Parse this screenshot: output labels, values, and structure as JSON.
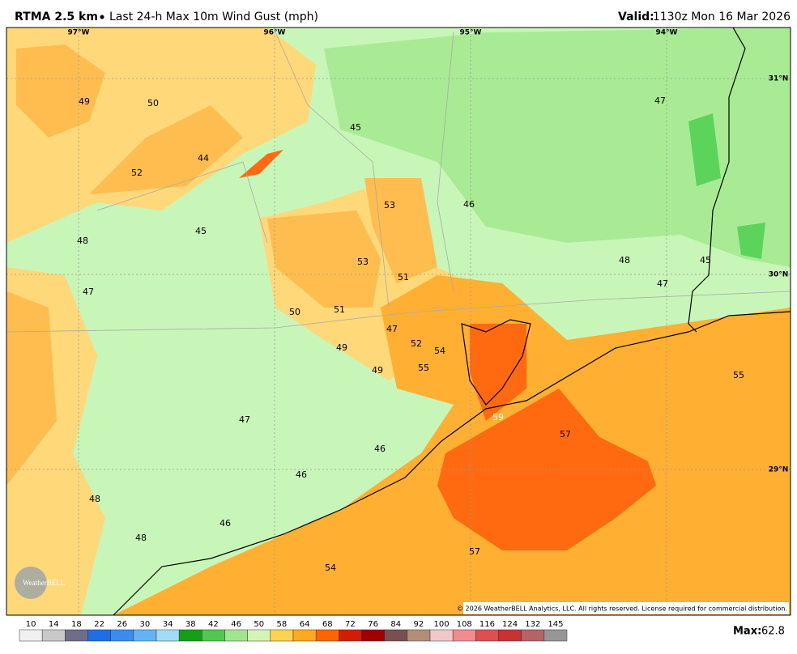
{
  "header": {
    "title": "RTMA 2.5 km",
    "subtitle": "Last 24-h Max 10m Wind Gust (mph)",
    "valid_label": "Valid:",
    "valid_time": "1130z Mon 16 Mar 2026"
  },
  "longitudes": [
    "97°W",
    "96°W",
    "95°W",
    "94°W"
  ],
  "latitudes": [
    "31°N",
    "30°N",
    "29°N"
  ],
  "stations": [
    49,
    50,
    44,
    52,
    45,
    53,
    46,
    47,
    48,
    45,
    53,
    51,
    48,
    45,
    47,
    47,
    50,
    51,
    47,
    52,
    54,
    49,
    49,
    55,
    55,
    59,
    57,
    47,
    46,
    46,
    48,
    46,
    48,
    57,
    54
  ],
  "copyright": "© 2026 WeatherBELL Analytics, LLC. All rights reserved. License required for commercial distribution.",
  "logo": "WeatherBELL",
  "colorbar": {
    "labels": [
      10,
      14,
      18,
      22,
      26,
      30,
      34,
      38,
      42,
      46,
      50,
      58,
      64,
      68,
      72,
      76,
      84,
      92,
      100,
      108,
      116,
      124,
      132,
      145
    ],
    "colors": [
      "#f0f0f0",
      "#c8c8c8",
      "#6e6e8c",
      "#1e6ee6",
      "#3c8cf0",
      "#64b4f5",
      "#a0dcf5",
      "#14a014",
      "#50c850",
      "#a0e68c",
      "#d2f5b4",
      "#ffd250",
      "#ffaa1e",
      "#ff6400",
      "#d21e00",
      "#a00000",
      "#785050",
      "#b48c78",
      "#f0c8c8",
      "#f08c8c",
      "#dc5050",
      "#c83232",
      "#b46464",
      "#969696"
    ]
  },
  "max": {
    "label": "Max:",
    "value": 62.8
  }
}
